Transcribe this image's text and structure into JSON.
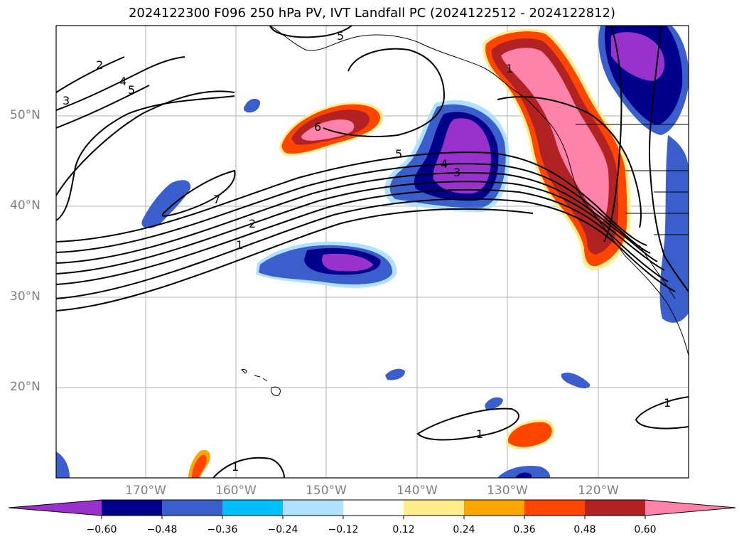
{
  "title": "2024122300 F096 250 hPa PV, IVT Landfall PC (2024122512 - 2024122812)",
  "lon_labels": [
    "170°W",
    "160°W",
    "150°W",
    "140°W",
    "130°W",
    "120°W"
  ],
  "lat_labels": [
    "50°N",
    "40°N",
    "30°N",
    "20°N"
  ],
  "colorbar": {
    "tick_labels": [
      "−0.60",
      "−0.48",
      "−0.36",
      "−0.24",
      "−0.12",
      "0.12",
      "0.24",
      "0.36",
      "0.48",
      "0.60"
    ],
    "colors": [
      "#9932cc",
      "#00008b",
      "#3a5fcd",
      "#00bfff",
      "#b0e2ff",
      "#ffffff",
      "#ffec8b",
      "#ffa500",
      "#ff4500",
      "#b22222",
      "#ff82ab"
    ]
  },
  "contour_labels": [
    "2",
    "3",
    "4",
    "5",
    "5",
    "6",
    "5",
    "4",
    "3",
    "7",
    "2",
    "1",
    "1",
    "1",
    "1",
    "1"
  ]
}
